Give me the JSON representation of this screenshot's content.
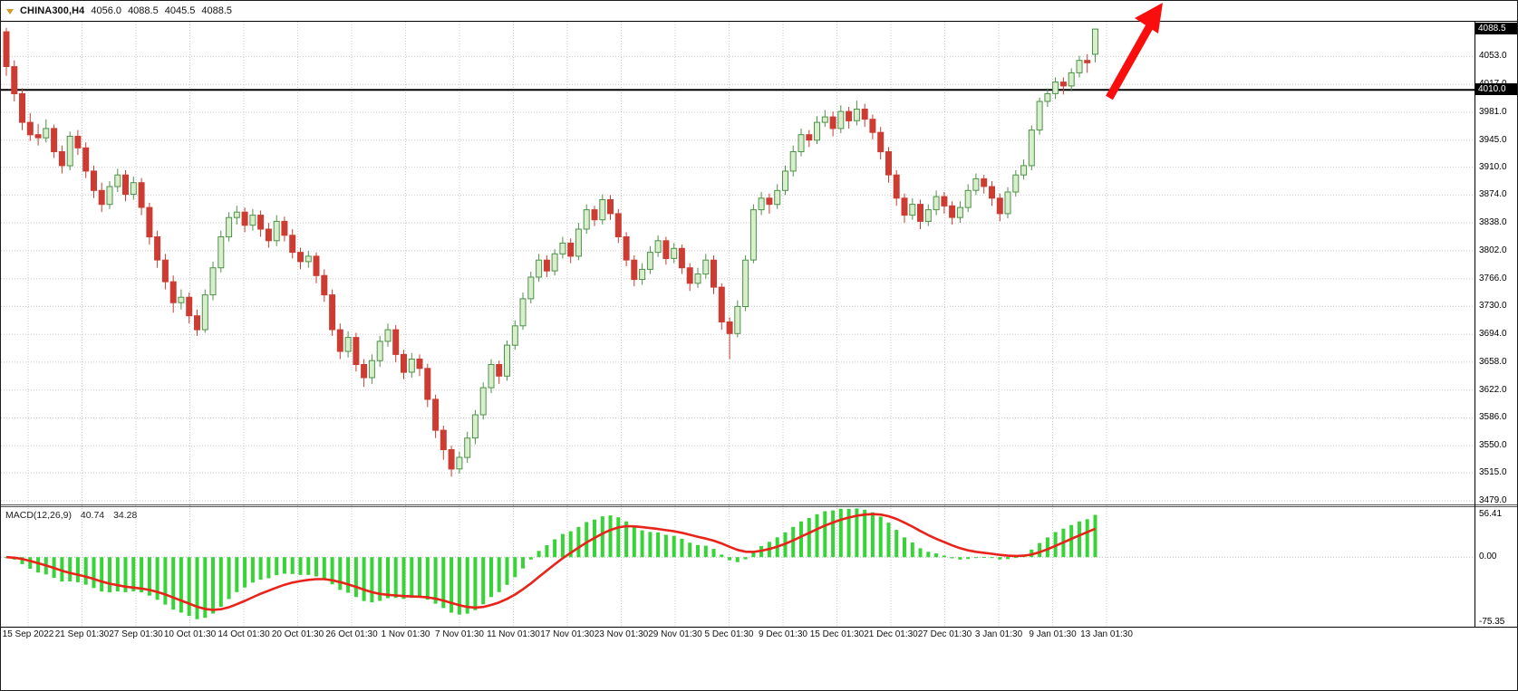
{
  "toolbar": {
    "symbol": "CHINA300,H4",
    "open": "4056.0",
    "high": "4088.5",
    "low": "4045.5",
    "close": "4088.5"
  },
  "main_chart": {
    "colors": {
      "background": "#ffffff",
      "grid": "#c9c9c9",
      "bear_candle": "#cc3c32",
      "bull_candle_fill": "#d9eecd",
      "bull_candle_stroke": "#4d9249",
      "macd_histogram": "#37d337",
      "macd_signal": "#e8231a",
      "hline": "#000000",
      "arrow": "#f90d0d",
      "badge_bg": "#000000",
      "badge_text": "#ffffff"
    },
    "price_axis": {
      "current_price": "4088.5",
      "hline_price": "4010.0"
    }
  },
  "macd_panel": {
    "label": "MACD(12,26,9)",
    "value_main": "40.74",
    "value_signal": "34.28"
  },
  "chart_data": [
    {
      "type": "candlestick",
      "title": "CHINA300,H4",
      "ylim": [
        3473,
        4098
      ],
      "y_ticks": [
        4053,
        4017,
        3981,
        3945,
        3910,
        3874,
        3838,
        3802,
        3766,
        3730,
        3694,
        3658,
        3622,
        3586,
        3550,
        3515,
        3479
      ],
      "x_labels": [
        "15 Sep 2022",
        "21 Sep 01:30",
        "27 Sep 01:30",
        "10 Oct 01:30",
        "14 Oct 01:30",
        "20 Oct 01:30",
        "26 Oct 01:30",
        "1 Nov 01:30",
        "7 Nov 01:30",
        "11 Nov 01:30",
        "17 Nov 01:30",
        "23 Nov 01:30",
        "29 Nov 01:30",
        "5 Dec 01:30",
        "9 Dec 01:30",
        "15 Dec 01:30",
        "21 Dec 01:30",
        "27 Dec 01:30",
        "3 Jan 01:30",
        "9 Jan 01:30",
        "13 Jan 01:30"
      ],
      "annotations": {
        "horizontal_line_price": 4010.0,
        "trend_arrow": "thick red up-right arrow over latest candles breaking above 4010 line",
        "last_price": 4088.5
      },
      "ohlc": [
        [
          4085,
          4090,
          4028,
          4040
        ],
        [
          4040,
          4048,
          3995,
          4005
        ],
        [
          4005,
          4012,
          3958,
          3968
        ],
        [
          3968,
          3980,
          3944,
          3952
        ],
        [
          3952,
          3966,
          3938,
          3948
        ],
        [
          3948,
          3972,
          3942,
          3960
        ],
        [
          3960,
          3965,
          3922,
          3930
        ],
        [
          3930,
          3938,
          3902,
          3912
        ],
        [
          3912,
          3956,
          3906,
          3950
        ],
        [
          3950,
          3958,
          3926,
          3935
        ],
        [
          3935,
          3942,
          3896,
          3905
        ],
        [
          3905,
          3912,
          3870,
          3880
        ],
        [
          3880,
          3890,
          3852,
          3862
        ],
        [
          3862,
          3892,
          3856,
          3885
        ],
        [
          3885,
          3908,
          3878,
          3900
        ],
        [
          3900,
          3906,
          3866,
          3875
        ],
        [
          3875,
          3898,
          3868,
          3890
        ],
        [
          3890,
          3896,
          3848,
          3858
        ],
        [
          3858,
          3864,
          3810,
          3820
        ],
        [
          3820,
          3828,
          3780,
          3790
        ],
        [
          3790,
          3798,
          3752,
          3762
        ],
        [
          3762,
          3770,
          3722,
          3735
        ],
        [
          3735,
          3752,
          3726,
          3742
        ],
        [
          3742,
          3748,
          3708,
          3718
        ],
        [
          3718,
          3726,
          3692,
          3700
        ],
        [
          3700,
          3752,
          3696,
          3745
        ],
        [
          3745,
          3788,
          3738,
          3780
        ],
        [
          3780,
          3828,
          3774,
          3820
        ],
        [
          3820,
          3852,
          3814,
          3845
        ],
        [
          3845,
          3860,
          3836,
          3852
        ],
        [
          3852,
          3858,
          3826,
          3835
        ],
        [
          3835,
          3856,
          3828,
          3848
        ],
        [
          3848,
          3854,
          3820,
          3830
        ],
        [
          3830,
          3838,
          3806,
          3815
        ],
        [
          3815,
          3848,
          3808,
          3840
        ],
        [
          3840,
          3846,
          3814,
          3822
        ],
        [
          3822,
          3830,
          3792,
          3800
        ],
        [
          3800,
          3806,
          3778,
          3788
        ],
        [
          3788,
          3802,
          3780,
          3795
        ],
        [
          3795,
          3800,
          3760,
          3770
        ],
        [
          3770,
          3778,
          3736,
          3745
        ],
        [
          3745,
          3752,
          3692,
          3700
        ],
        [
          3700,
          3708,
          3662,
          3672
        ],
        [
          3672,
          3698,
          3664,
          3690
        ],
        [
          3690,
          3696,
          3646,
          3655
        ],
        [
          3655,
          3662,
          3626,
          3638
        ],
        [
          3638,
          3668,
          3630,
          3660
        ],
        [
          3660,
          3692,
          3652,
          3685
        ],
        [
          3685,
          3708,
          3678,
          3700
        ],
        [
          3700,
          3706,
          3658,
          3668
        ],
        [
          3668,
          3674,
          3636,
          3645
        ],
        [
          3645,
          3670,
          3638,
          3662
        ],
        [
          3662,
          3668,
          3640,
          3650
        ],
        [
          3650,
          3656,
          3600,
          3610
        ],
        [
          3610,
          3616,
          3560,
          3570
        ],
        [
          3570,
          3576,
          3532,
          3545
        ],
        [
          3545,
          3550,
          3510,
          3520
        ],
        [
          3520,
          3542,
          3514,
          3535
        ],
        [
          3535,
          3568,
          3528,
          3560
        ],
        [
          3560,
          3596,
          3552,
          3590
        ],
        [
          3590,
          3632,
          3584,
          3625
        ],
        [
          3625,
          3662,
          3618,
          3655
        ],
        [
          3655,
          3660,
          3630,
          3640
        ],
        [
          3640,
          3686,
          3634,
          3680
        ],
        [
          3680,
          3712,
          3674,
          3705
        ],
        [
          3705,
          3748,
          3700,
          3740
        ],
        [
          3740,
          3775,
          3734,
          3768
        ],
        [
          3768,
          3798,
          3762,
          3790
        ],
        [
          3790,
          3796,
          3768,
          3776
        ],
        [
          3776,
          3804,
          3770,
          3798
        ],
        [
          3798,
          3820,
          3792,
          3812
        ],
        [
          3812,
          3818,
          3786,
          3795
        ],
        [
          3795,
          3838,
          3790,
          3830
        ],
        [
          3830,
          3862,
          3824,
          3855
        ],
        [
          3855,
          3860,
          3834,
          3842
        ],
        [
          3842,
          3875,
          3836,
          3868
        ],
        [
          3868,
          3874,
          3842,
          3850
        ],
        [
          3850,
          3856,
          3812,
          3820
        ],
        [
          3820,
          3826,
          3782,
          3790
        ],
        [
          3790,
          3796,
          3756,
          3765
        ],
        [
          3765,
          3786,
          3758,
          3778
        ],
        [
          3778,
          3808,
          3772,
          3800
        ],
        [
          3800,
          3822,
          3794,
          3815
        ],
        [
          3815,
          3820,
          3784,
          3792
        ],
        [
          3792,
          3812,
          3786,
          3805
        ],
        [
          3805,
          3810,
          3772,
          3780
        ],
        [
          3780,
          3786,
          3750,
          3760
        ],
        [
          3760,
          3780,
          3754,
          3772
        ],
        [
          3772,
          3798,
          3766,
          3790
        ],
        [
          3790,
          3796,
          3746,
          3755
        ],
        [
          3755,
          3760,
          3700,
          3710
        ],
        [
          3710,
          3716,
          3662,
          3695
        ],
        [
          3695,
          3738,
          3690,
          3730
        ],
        [
          3730,
          3796,
          3724,
          3790
        ],
        [
          3790,
          3862,
          3786,
          3855
        ],
        [
          3855,
          3878,
          3848,
          3870
        ],
        [
          3870,
          3876,
          3850,
          3862
        ],
        [
          3862,
          3888,
          3856,
          3880
        ],
        [
          3880,
          3912,
          3874,
          3905
        ],
        [
          3905,
          3938,
          3898,
          3930
        ],
        [
          3930,
          3960,
          3924,
          3952
        ],
        [
          3952,
          3958,
          3936,
          3945
        ],
        [
          3945,
          3976,
          3940,
          3968
        ],
        [
          3968,
          3984,
          3962,
          3975
        ],
        [
          3975,
          3982,
          3950,
          3960
        ],
        [
          3960,
          3990,
          3954,
          3982
        ],
        [
          3982,
          3988,
          3960,
          3970
        ],
        [
          3970,
          3996,
          3964,
          3985
        ],
        [
          3985,
          3992,
          3962,
          3972
        ],
        [
          3972,
          3978,
          3946,
          3955
        ],
        [
          3955,
          3962,
          3920,
          3930
        ],
        [
          3930,
          3936,
          3890,
          3900
        ],
        [
          3900,
          3906,
          3860,
          3870
        ],
        [
          3870,
          3876,
          3838,
          3848
        ],
        [
          3848,
          3870,
          3842,
          3862
        ],
        [
          3862,
          3868,
          3830,
          3840
        ],
        [
          3840,
          3862,
          3834,
          3855
        ],
        [
          3855,
          3880,
          3848,
          3872
        ],
        [
          3872,
          3878,
          3850,
          3860
        ],
        [
          3860,
          3866,
          3836,
          3845
        ],
        [
          3845,
          3866,
          3838,
          3858
        ],
        [
          3858,
          3888,
          3852,
          3880
        ],
        [
          3880,
          3902,
          3874,
          3895
        ],
        [
          3895,
          3900,
          3876,
          3885
        ],
        [
          3885,
          3892,
          3860,
          3870
        ],
        [
          3870,
          3876,
          3840,
          3850
        ],
        [
          3850,
          3884,
          3844,
          3878
        ],
        [
          3878,
          3906,
          3872,
          3900
        ],
        [
          3900,
          3920,
          3894,
          3912
        ],
        [
          3912,
          3964,
          3906,
          3958
        ],
        [
          3958,
          4000,
          3952,
          3995
        ],
        [
          3995,
          4012,
          3988,
          4005
        ],
        [
          4005,
          4026,
          3998,
          4020
        ],
        [
          4020,
          4026,
          4004,
          4015
        ],
        [
          4015,
          4038,
          4008,
          4032
        ],
        [
          4032,
          4054,
          4026,
          4048
        ],
        [
          4048,
          4056,
          4032,
          4045
        ],
        [
          4056,
          4088.5,
          4045.5,
          4088.5
        ]
      ]
    },
    {
      "type": "bar",
      "name": "MACD(12,26,9)",
      "params": [
        12,
        26,
        9
      ],
      "ylim": [
        -75.35,
        56.41
      ],
      "y_ticks": [
        56.41,
        0.0,
        -75.35
      ],
      "histogram_rule": "EMA12(close) - EMA26(close), drawn as green bars from zero line",
      "signal_rule": "EMA9 of histogram, drawn as thick red line",
      "current_macd": 40.74,
      "current_signal": 34.28
    }
  ]
}
